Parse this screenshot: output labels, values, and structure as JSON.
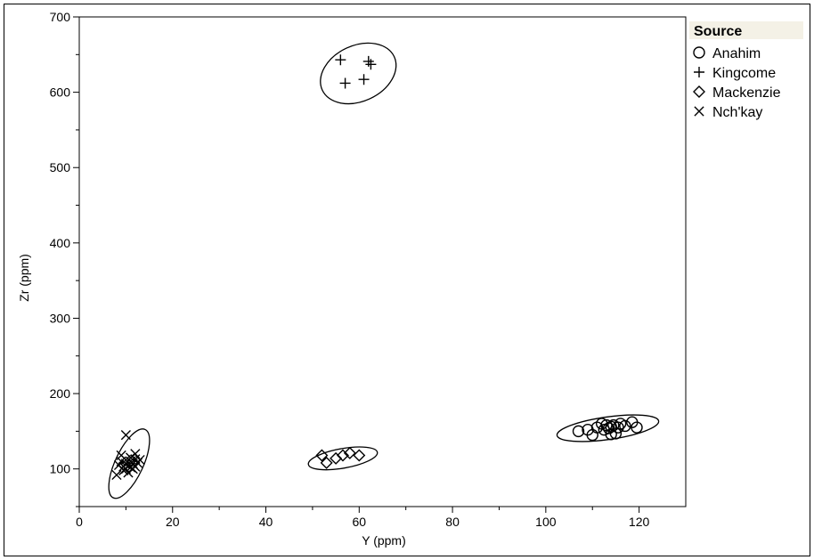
{
  "chart_data": {
    "type": "scatter",
    "xlabel": "Y (ppm)",
    "ylabel": "Zr (ppm)",
    "xlim": [
      0,
      130
    ],
    "ylim": [
      50,
      700
    ],
    "x_ticks": [
      0,
      20,
      40,
      60,
      80,
      100,
      120
    ],
    "y_ticks": [
      100,
      200,
      300,
      400,
      500,
      600,
      700
    ],
    "grid": false,
    "legend": {
      "title": "Source",
      "placement": "right"
    },
    "series": [
      {
        "name": "Anahim",
        "marker": "circle",
        "points": [
          [
            107,
            150
          ],
          [
            109,
            152
          ],
          [
            110,
            145
          ],
          [
            111,
            155
          ],
          [
            112,
            160
          ],
          [
            112.5,
            152
          ],
          [
            113,
            158
          ],
          [
            113.5,
            154
          ],
          [
            114,
            156
          ],
          [
            114,
            146
          ],
          [
            114.5,
            158
          ],
          [
            115,
            147
          ],
          [
            115.5,
            155
          ],
          [
            116,
            160
          ],
          [
            117,
            157
          ],
          [
            118.5,
            162
          ],
          [
            119.5,
            155
          ]
        ],
        "ellipse": {
          "cx": 113.3,
          "cy": 154,
          "rx": 11,
          "ry": 15,
          "angle_deg": -8
        }
      },
      {
        "name": "Kingcome",
        "marker": "plus",
        "points": [
          [
            56,
            643
          ],
          [
            57,
            612
          ],
          [
            61,
            617
          ],
          [
            62,
            641
          ],
          [
            62.5,
            637
          ]
        ],
        "ellipse": {
          "cx": 59.8,
          "cy": 625,
          "rx": 8.5,
          "ry": 37,
          "angle_deg": -25
        }
      },
      {
        "name": "Mackenzie",
        "marker": "diamond",
        "points": [
          [
            52,
            118
          ],
          [
            53,
            108
          ],
          [
            55,
            114
          ],
          [
            56.5,
            118
          ],
          [
            58,
            121
          ],
          [
            60,
            118
          ]
        ],
        "ellipse": {
          "cx": 56.5,
          "cy": 114,
          "rx": 7.5,
          "ry": 13,
          "angle_deg": -10
        }
      },
      {
        "name": "Nch'kay",
        "marker": "x",
        "points": [
          [
            8,
            92
          ],
          [
            8.5,
            105
          ],
          [
            9,
            110
          ],
          [
            9,
            118
          ],
          [
            9.5,
            98
          ],
          [
            9.5,
            103
          ],
          [
            10,
            100
          ],
          [
            10,
            107
          ],
          [
            10,
            112
          ],
          [
            10,
            145
          ],
          [
            10.5,
            104
          ],
          [
            10.5,
            95
          ],
          [
            11,
            102
          ],
          [
            11,
            110
          ],
          [
            11,
            115
          ],
          [
            11.5,
            100
          ],
          [
            11.5,
            107
          ],
          [
            12,
            103
          ],
          [
            12,
            113
          ],
          [
            12,
            120
          ],
          [
            12.5,
            108
          ],
          [
            13,
            112
          ]
        ],
        "ellipse": {
          "cx": 10.7,
          "cy": 107,
          "rx": 3,
          "ry": 50,
          "angle_deg": 25
        }
      }
    ]
  }
}
